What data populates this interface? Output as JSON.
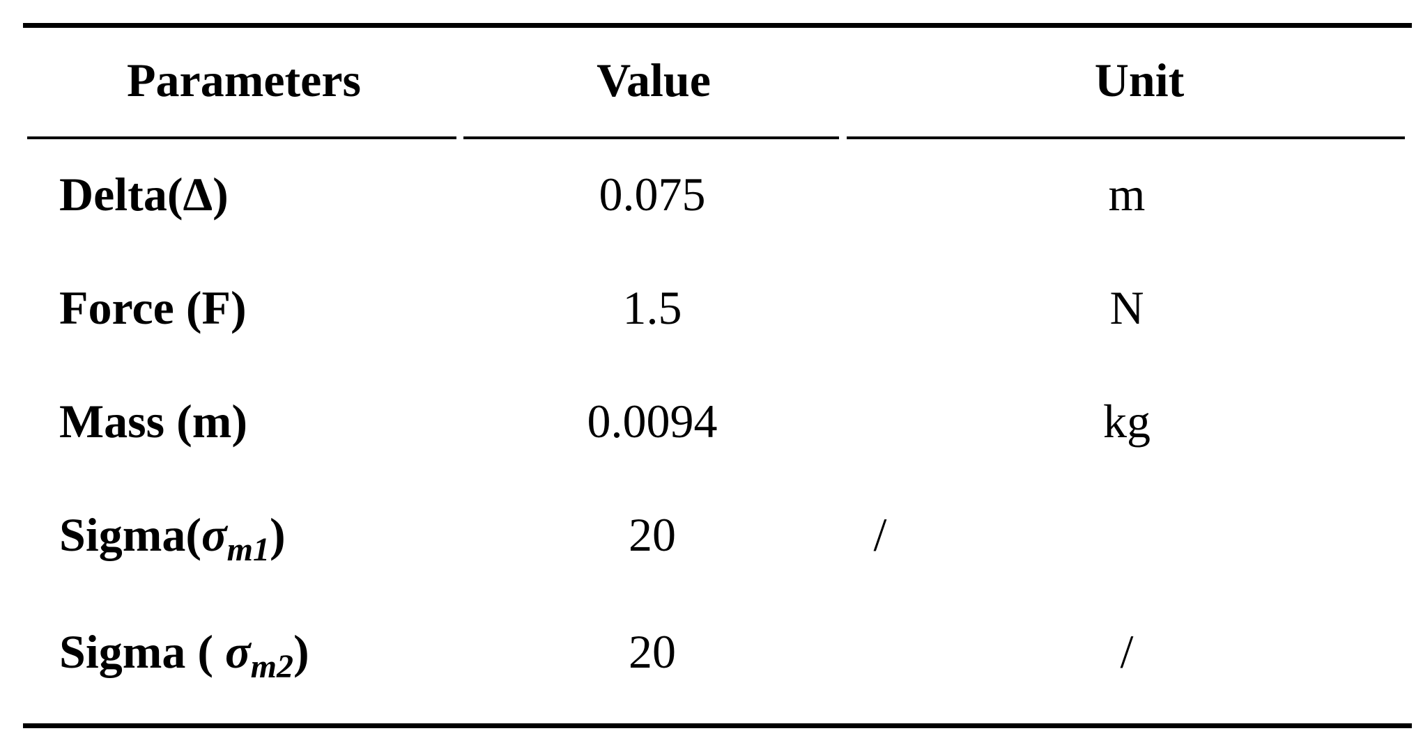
{
  "table": {
    "header": [
      "Parameters",
      "Value",
      "Unit"
    ],
    "rows": [
      [
        "Delta(Δ)",
        "0.075",
        "m"
      ],
      [
        "Force (F)",
        "1.5",
        "N"
      ],
      [
        "Mass (m)",
        "0.0094",
        "kg"
      ],
      [
        {
          "prefix": "Sigma(",
          "symbol": "σ",
          "subscript": "m1",
          "suffix": ")"
        },
        "20",
        "/"
      ],
      [
        {
          "prefix": "Sigma ( ",
          "symbol": "σ",
          "subscript": "m2",
          "suffix": ")"
        },
        "20",
        "/"
      ]
    ]
  }
}
